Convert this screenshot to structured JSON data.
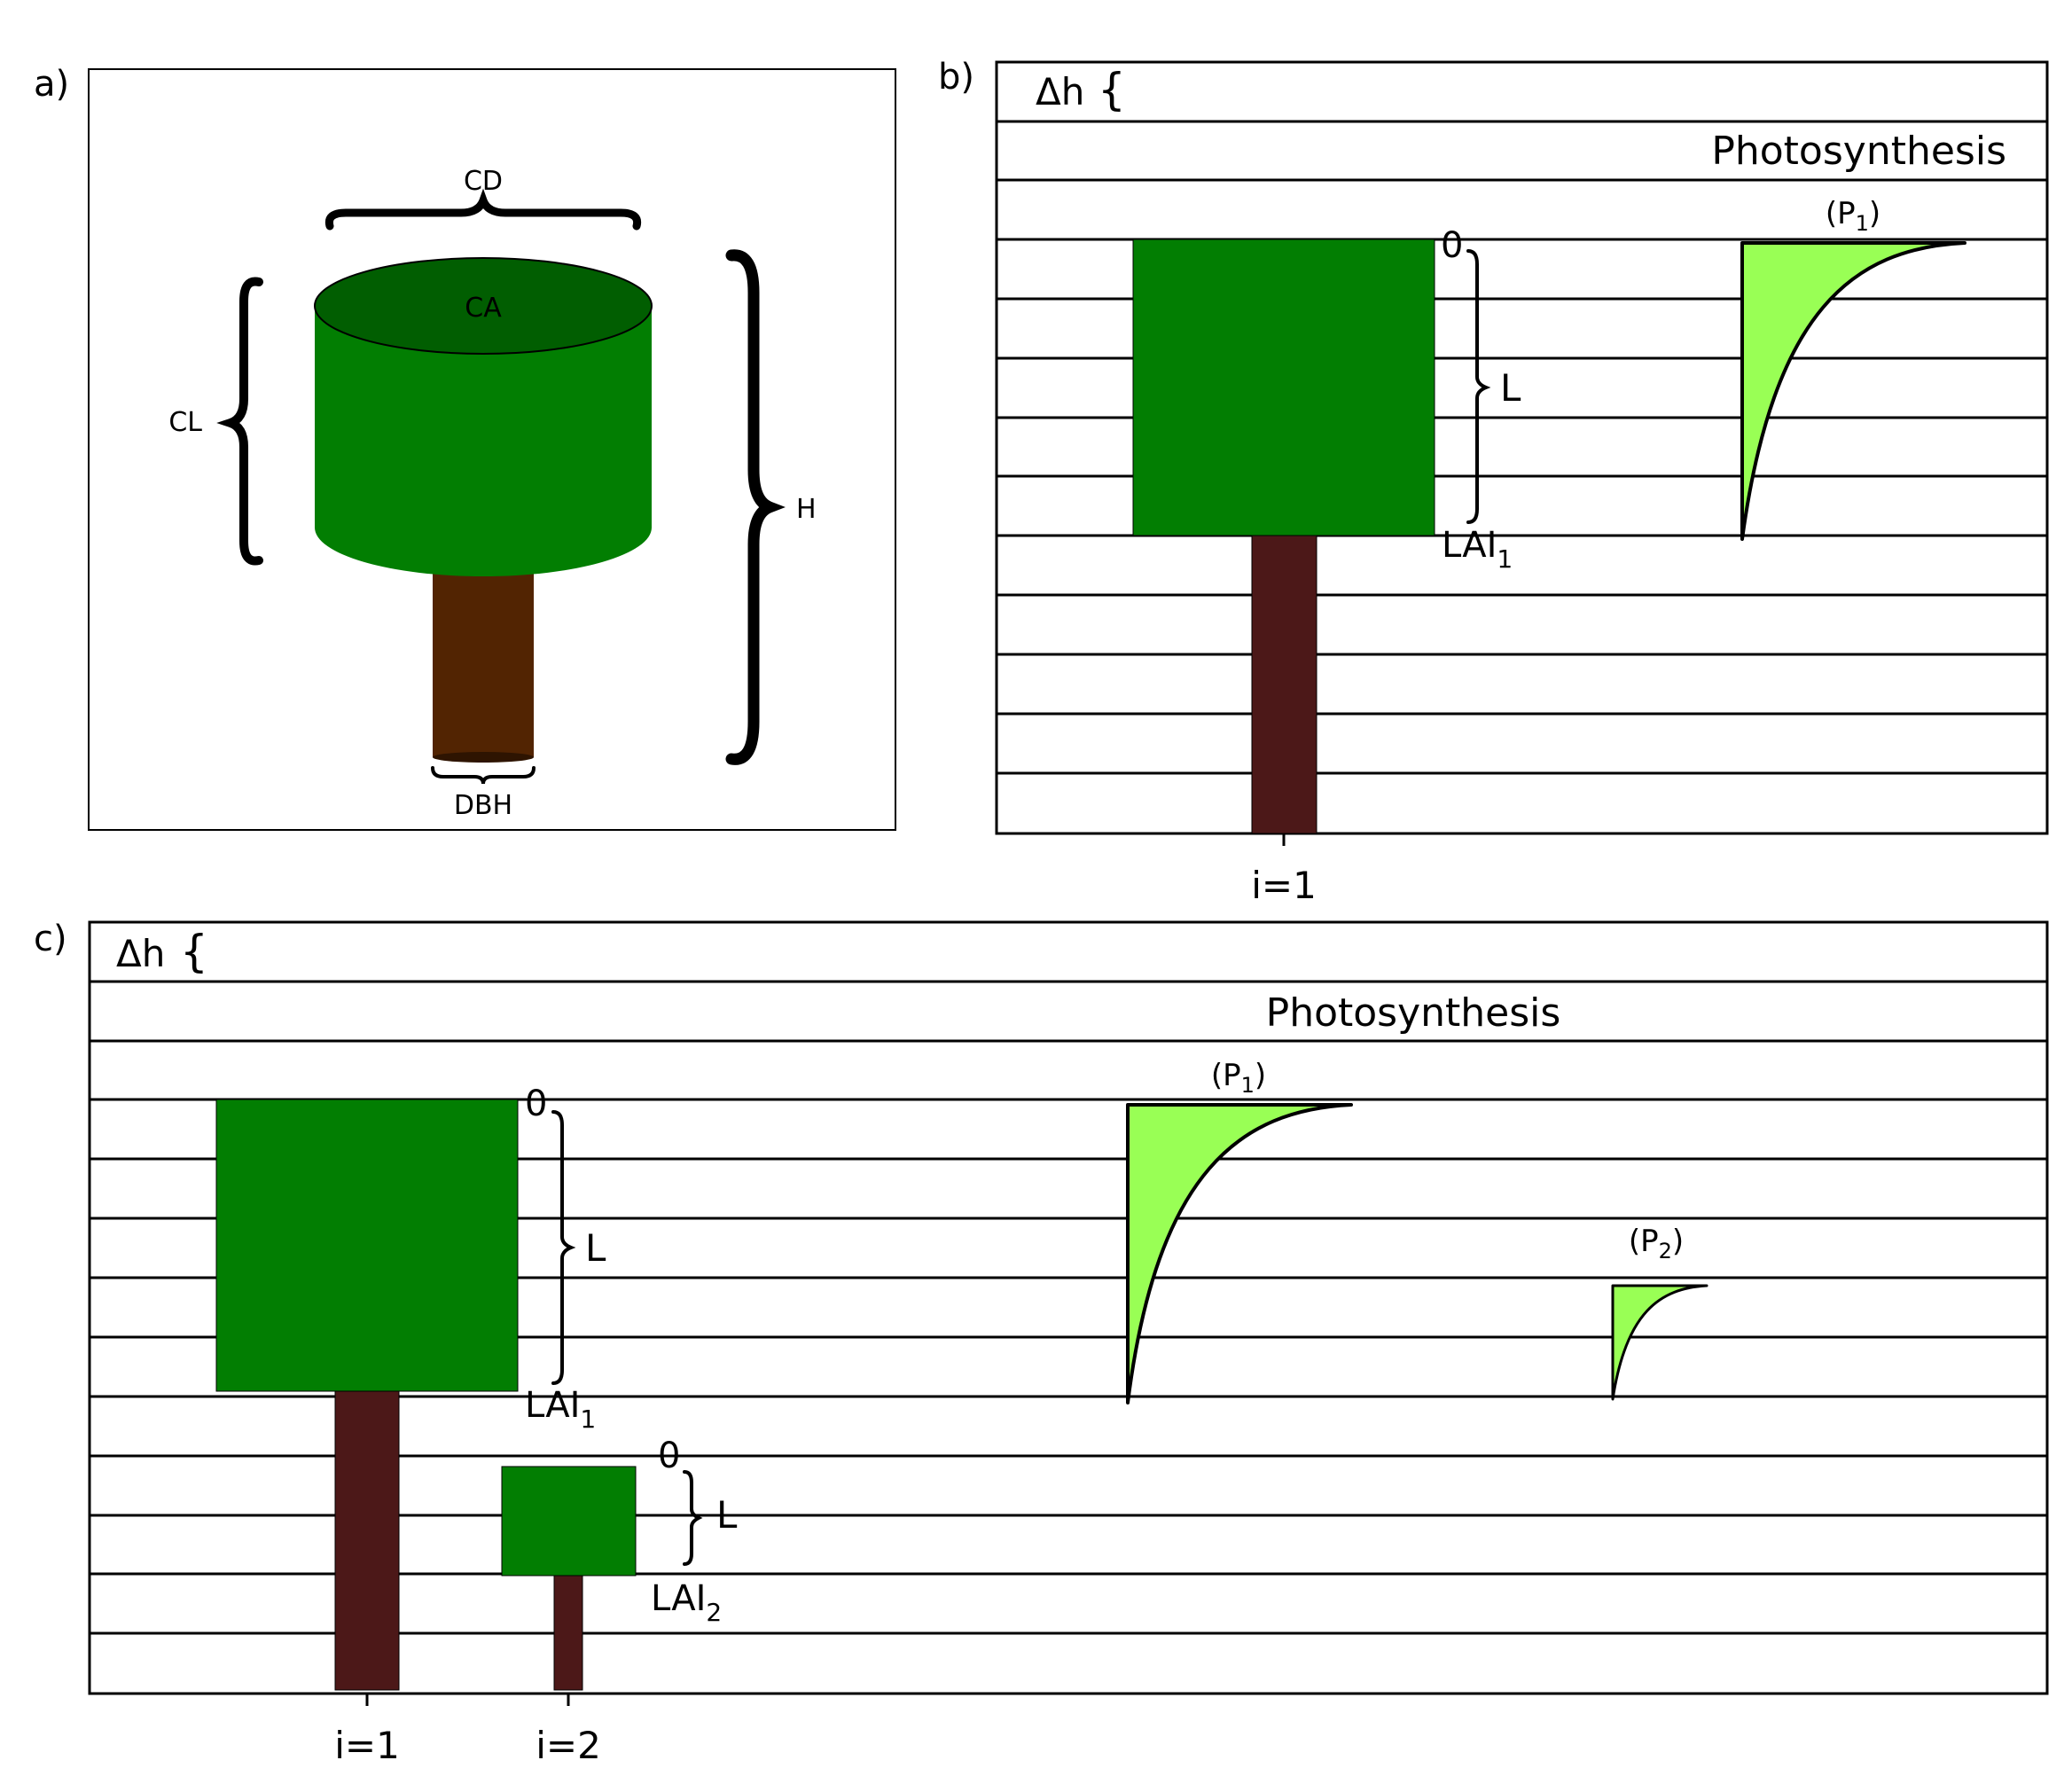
{
  "panel_a": {
    "label": "a)",
    "cd": "CD",
    "ca": "CA",
    "cl": "CL",
    "h": "H",
    "dbh": "DBH"
  },
  "panel_b": {
    "label": "b)",
    "delta_h": "Δh",
    "photosynthesis": "Photosynthesis",
    "top_label": "0",
    "l_label": "L",
    "lai_base": "LAI",
    "lai_sub": "1",
    "p_open": "(P",
    "p_sub": "1",
    "p_close": ")",
    "tick_label": "i=1"
  },
  "panel_c": {
    "label": "c)",
    "delta_h": "Δh",
    "photosynthesis": "Photosynthesis",
    "tree1": {
      "top_label": "0",
      "l_label": "L",
      "lai_base": "LAI",
      "lai_sub": "1",
      "tick_label": "i=1"
    },
    "tree2": {
      "top_label": "0",
      "l_label": "L",
      "lai_base": "LAI",
      "lai_sub": "2",
      "tick_label": "i=2"
    },
    "p1_open": "(P",
    "p1_sub": "1",
    "p1_close": ")",
    "p2_open": "(P",
    "p2_sub": "2",
    "p2_close": ")"
  },
  "colors": {
    "crown": "#027e02",
    "crown_top": "#015e01",
    "trunk_a": "#522402",
    "trunk": "#4c1818",
    "photo_fill": "#99ff55",
    "line": "#000000"
  }
}
